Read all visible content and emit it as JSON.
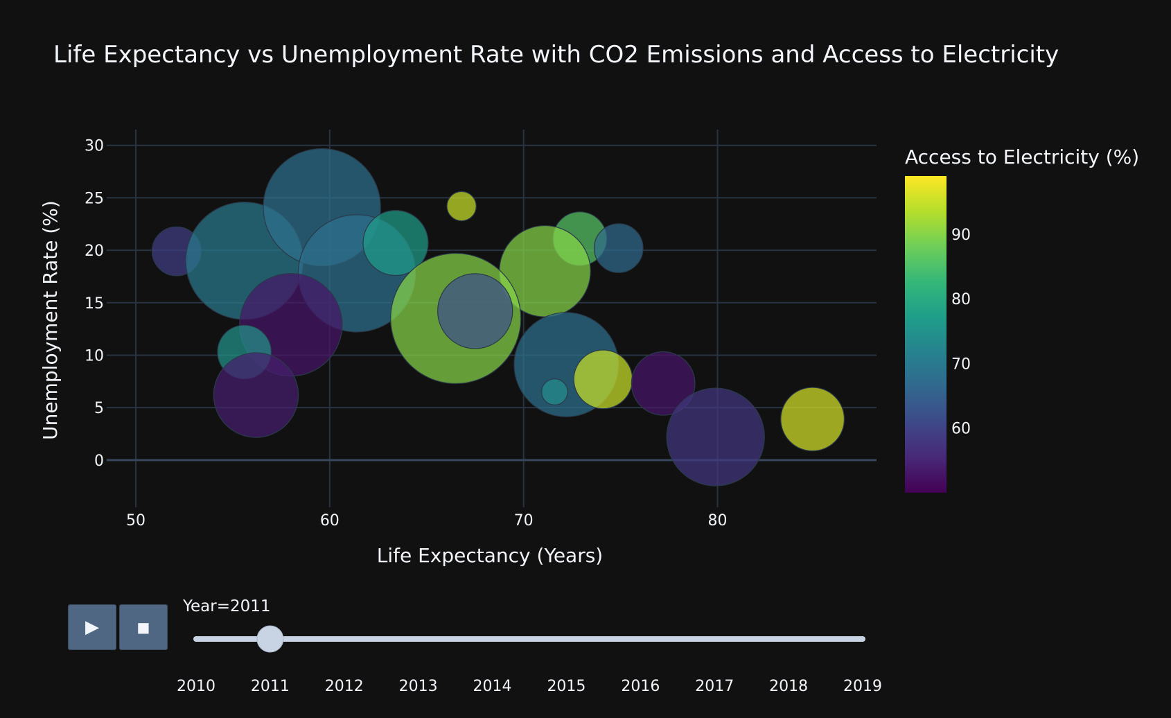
{
  "chart_data": {
    "type": "scatter",
    "title": "Life Expectancy vs Unemployment Rate with CO2 Emissions and Access to Electricity",
    "xlabel": "Life Expectancy (Years)",
    "ylabel": "Unemployment Rate (%)",
    "xlim": [
      48.5,
      88.2
    ],
    "ylim": [
      -4.5,
      31.5
    ],
    "xticks": [
      50,
      60,
      70,
      80
    ],
    "yticks": [
      0,
      5,
      10,
      15,
      20,
      25,
      30
    ],
    "colorbar": {
      "title": "Access to Electricity (%)",
      "range": [
        50,
        99
      ],
      "ticks": [
        60,
        70,
        80,
        90
      ]
    },
    "size_encoding": "CO2 Emissions",
    "points": [
      {
        "x": 52.1,
        "y": 19.9,
        "size": 3.0,
        "color": 59
      },
      {
        "x": 55.6,
        "y": 19.0,
        "size": 7.2,
        "color": 70
      },
      {
        "x": 59.6,
        "y": 24.1,
        "size": 7.2,
        "color": 68
      },
      {
        "x": 61.4,
        "y": 17.8,
        "size": 7.2,
        "color": 68
      },
      {
        "x": 63.4,
        "y": 20.7,
        "size": 4.0,
        "color": 77
      },
      {
        "x": 66.8,
        "y": 24.2,
        "size": 1.8,
        "color": 95
      },
      {
        "x": 72.9,
        "y": 21.1,
        "size": 3.3,
        "color": 86
      },
      {
        "x": 74.9,
        "y": 20.2,
        "size": 3.0,
        "color": 67
      },
      {
        "x": 71.1,
        "y": 18.0,
        "size": 5.6,
        "color": 90
      },
      {
        "x": 66.5,
        "y": 13.5,
        "size": 8.0,
        "color": 90
      },
      {
        "x": 67.5,
        "y": 14.2,
        "size": 4.6,
        "color": 62
      },
      {
        "x": 58.0,
        "y": 12.9,
        "size": 6.3,
        "color": 53
      },
      {
        "x": 55.6,
        "y": 10.3,
        "size": 3.3,
        "color": 75
      },
      {
        "x": 56.2,
        "y": 6.2,
        "size": 5.2,
        "color": 54
      },
      {
        "x": 72.2,
        "y": 9.1,
        "size": 6.4,
        "color": 68
      },
      {
        "x": 71.6,
        "y": 6.5,
        "size": 1.6,
        "color": 74
      },
      {
        "x": 74.1,
        "y": 7.7,
        "size": 3.6,
        "color": 95
      },
      {
        "x": 77.2,
        "y": 7.3,
        "size": 3.9,
        "color": 53
      },
      {
        "x": 79.9,
        "y": 2.2,
        "size": 6.0,
        "color": 58
      },
      {
        "x": 84.9,
        "y": 3.9,
        "size": 3.9,
        "color": 96
      }
    ]
  },
  "animation": {
    "play_icon": "play-icon",
    "stop_icon": "stop-icon",
    "slider_prefix": "Year=",
    "current_year": "2011",
    "current_index": 1,
    "years": [
      "2010",
      "2011",
      "2012",
      "2013",
      "2014",
      "2015",
      "2016",
      "2017",
      "2018",
      "2019"
    ]
  },
  "colors": {
    "background": "#111111",
    "grid": "#283442",
    "zeroline": "#36475c",
    "text": "#f2f5fa",
    "button": "#506784",
    "slider_track": "#c8d4e3",
    "slider_handle": "#c8d4e3",
    "viridis": [
      "#440154",
      "#482878",
      "#3e4989",
      "#31688e",
      "#26828e",
      "#1f9e89",
      "#35b779",
      "#6ece58",
      "#b5de2b",
      "#fde725"
    ]
  }
}
